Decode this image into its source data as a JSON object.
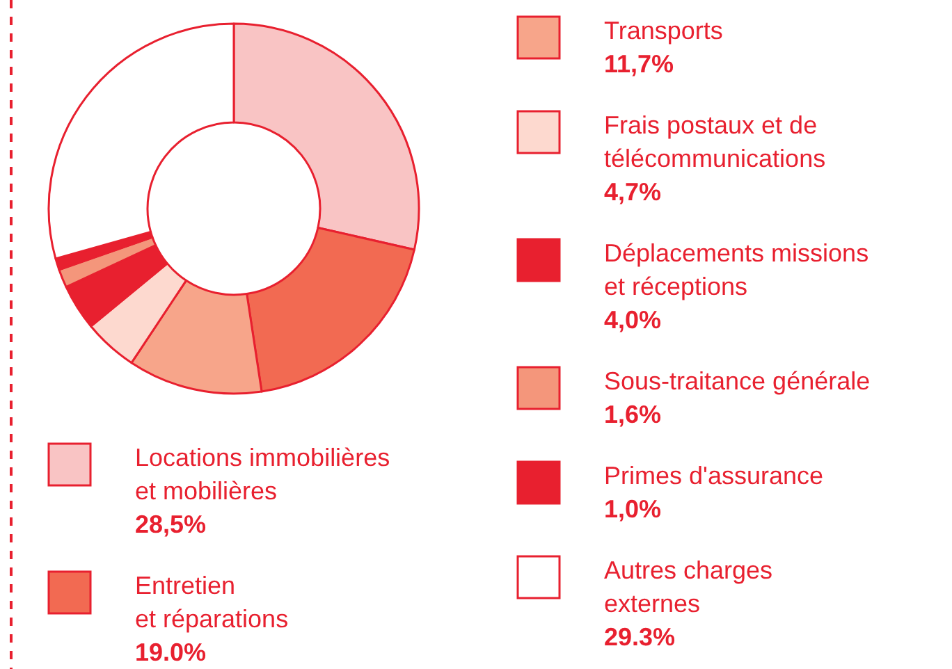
{
  "chart_data": {
    "type": "donut",
    "categories": [
      "Locations immobilières\net mobilières",
      "Entretien\net réparations",
      "Transports",
      "Frais postaux et de\ntélécommunications",
      "Déplacements missions\net réceptions",
      "Sous-traitance générale",
      "Primes d'assurance",
      "Autres charges\nexternes"
    ],
    "values": [
      28.5,
      19.0,
      11.7,
      4.7,
      4.0,
      1.6,
      1.0,
      29.3
    ],
    "value_labels": [
      "28,5%",
      "19.0%",
      "11,7%",
      "4,7%",
      "4,0%",
      "1,6%",
      "1,0%",
      "29.3%"
    ],
    "colors": [
      "#f9c4c4",
      "#f26a52",
      "#f7a58a",
      "#fdd9cf",
      "#e8202f",
      "#f4967b",
      "#e8202f",
      "#ffffff"
    ],
    "legend": "right"
  }
}
